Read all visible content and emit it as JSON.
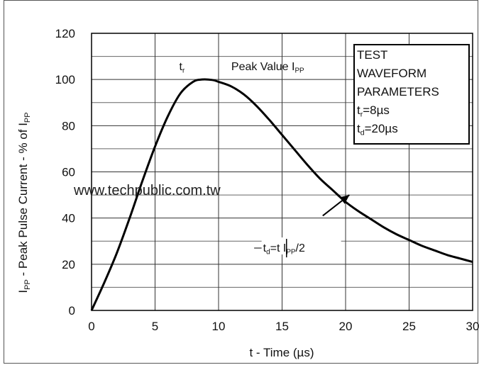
{
  "chart_data": {
    "type": "line",
    "title": "",
    "xlabel": "t - Time (µs)",
    "ylabel": {
      "parts": [
        "I",
        "PP",
        " - Peak Pulse Current - % of I",
        "PP"
      ]
    },
    "xlim": [
      0,
      30
    ],
    "ylim": [
      0,
      120
    ],
    "x_ticks": [
      "0",
      "5",
      "10",
      "15",
      "20",
      "25",
      "30"
    ],
    "y_ticks": [
      "0",
      "20",
      "40",
      "60",
      "80",
      "100",
      "120"
    ],
    "grid": true,
    "series": [
      {
        "x": [
          0,
          1,
          2,
          3,
          4,
          5,
          6,
          7,
          8,
          8.7,
          9.5,
          10,
          11,
          12,
          13,
          14,
          15,
          16,
          17,
          18,
          19,
          20,
          21,
          22,
          23,
          24,
          25,
          26,
          27,
          28,
          29,
          30
        ],
        "y": [
          0,
          12,
          25,
          40,
          56,
          71,
          84,
          94,
          99,
          100,
          99.8,
          99,
          97,
          93.5,
          88.5,
          82.5,
          76,
          69.5,
          63,
          57,
          52,
          47,
          43,
          39.5,
          36,
          33,
          30.5,
          28,
          26,
          24,
          22.5,
          21
        ],
        "color": "#000000"
      }
    ],
    "annotations": {
      "tr": {
        "main": "t",
        "sub": "r",
        "x": 6.9,
        "y": 104
      },
      "peak": {
        "main": "Peak Value I",
        "sub": "PP",
        "x": 11,
        "y": 104
      },
      "td": {
        "main": "t",
        "sub": "d",
        "rest": "=t",
        "rest2": "I",
        "sub2": "PP",
        "rest3": "/2",
        "x": 13.5,
        "y": 27
      },
      "arrow": {
        "from": [
          18.2,
          41
        ],
        "to": [
          20.3,
          50
        ]
      },
      "td_line": {
        "x0": 12.8,
        "x1": 15.3,
        "y": 27
      },
      "td_tick": {
        "x": 15.35,
        "y0": 23,
        "y1": 31
      }
    },
    "legend_box": {
      "position": "top-right",
      "lines": [
        {
          "main": "TEST"
        },
        {
          "main": "WAVEFORM"
        },
        {
          "main": "PARAMETERS"
        },
        {
          "main": "t",
          "sub": "r",
          "rest": "=8µs"
        },
        {
          "main": "t",
          "sub": "d",
          "rest": "=20µs"
        }
      ]
    }
  },
  "watermark": "www.techpublic.com.tw"
}
